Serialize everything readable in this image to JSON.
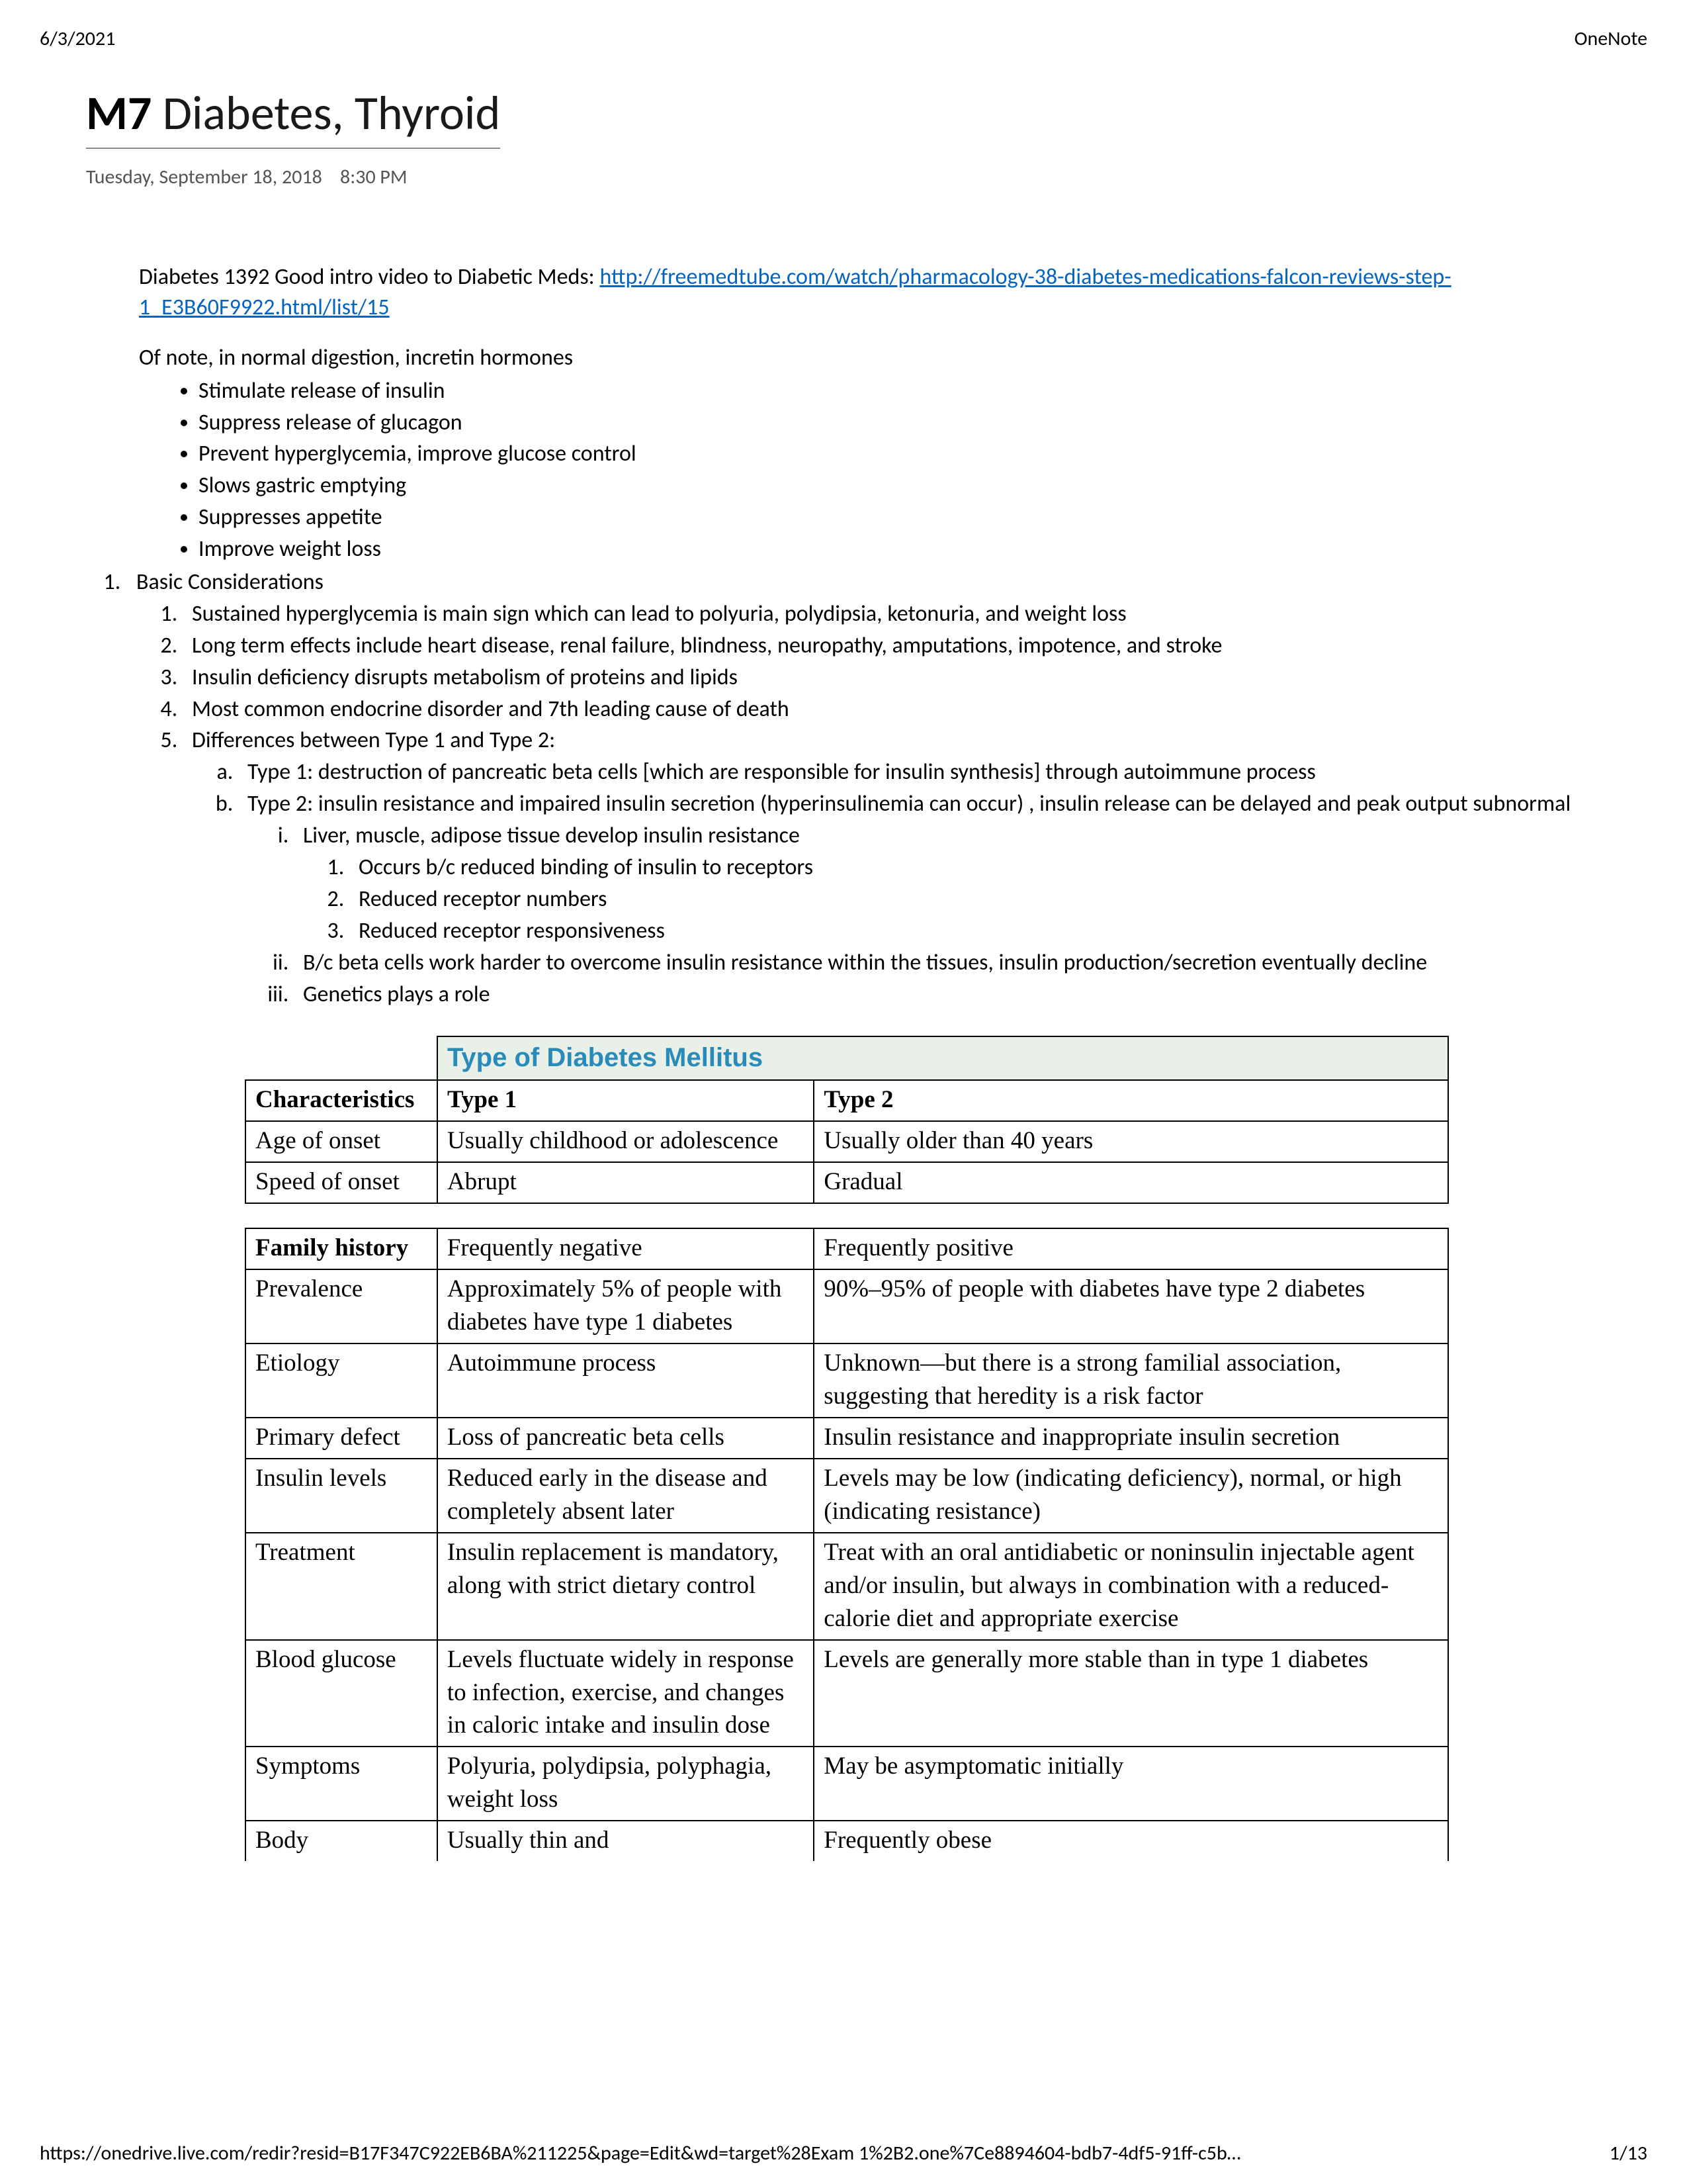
{
  "header": {
    "date": "6/3/2021",
    "app": "OneNote"
  },
  "title": {
    "prefix": "M7",
    "rest": " Diabetes, Thyroid"
  },
  "timestamp": {
    "date": "Tuesday, September 18, 2018",
    "time": "8:30 PM"
  },
  "intro": {
    "lead": "Diabetes 1392 Good intro video to Diabetic Meds: ",
    "link_text": "http://freemedtube.com/watch/pharmacology-38-diabetes-medications-falcon-reviews-step-1_E3B60F9922.html/list/15"
  },
  "incretin": {
    "lead": "Of note, in normal digestion, incretin hormones",
    "items": [
      "Stimulate release of insulin",
      "Suppress release of glucagon",
      "Prevent hyperglycemia, improve glucose control",
      "Slows gastric emptying",
      "Suppresses appetite",
      "Improve weight loss"
    ]
  },
  "outline": {
    "l1": "Basic Considerations",
    "l1_items": [
      "Sustained hyperglycemia is main sign which can lead to polyuria, polydipsia, ketonuria, and weight loss",
      "Long term effects include heart disease, renal failure, blindness, neuropathy, amputations, impotence, and stroke",
      "Insulin deficiency disrupts metabolism of proteins and lipids",
      "Most common endocrine disorder and 7th leading cause of death",
      "Differences between Type 1 and Type 2:"
    ],
    "diff": {
      "a": "Type 1: destruction of pancreatic beta cells [which are responsible for insulin synthesis] through autoimmune process",
      "b": "Type 2: insulin resistance and impaired insulin secretion (hyperinsulinemia can occur) , insulin release can be delayed and peak output subnormal",
      "b_i": "Liver, muscle, adipose tissue develop insulin resistance",
      "b_i_1": "Occurs b/c reduced binding of insulin to receptors",
      "b_i_2": "Reduced receptor numbers",
      "b_i_3": "Reduced receptor responsiveness",
      "b_ii": "B/c beta cells work harder to overcome insulin resistance within the tissues, insulin production/secretion eventually decline",
      "b_iii": "Genetics plays a role"
    }
  },
  "table": {
    "title": "Type of Diabetes Mellitus",
    "col0": "Characteristics",
    "col1": "Type 1",
    "col2": "Type 2",
    "rows1": [
      [
        "Age of onset",
        "Usually childhood or adolescence",
        "Usually older than 40 years"
      ],
      [
        "Speed of onset",
        "Abrupt",
        "Gradual"
      ]
    ],
    "rows2": [
      [
        "Family history",
        "Frequently negative",
        "Frequently positive"
      ],
      [
        "Prevalence",
        "Approximately 5% of people with diabetes have type 1 diabetes",
        "90%–95% of people with diabetes have type 2 diabetes"
      ],
      [
        "Etiology",
        "Autoimmune process",
        "Unknown—but there is a strong familial association, suggesting that heredity is a risk factor"
      ],
      [
        "Primary defect",
        "Loss of pancreatic beta cells",
        "Insulin resistance and inappropriate insulin secretion"
      ],
      [
        "Insulin levels",
        "Reduced early in the disease and completely absent later",
        "Levels may be low (indicating deficiency), normal, or high (indicating resistance)"
      ],
      [
        "Treatment",
        "Insulin replacement is mandatory, along with strict dietary control",
        "Treat with an oral antidiabetic or noninsulin injectable agent and/or insulin, but always in combination with a reduced-calorie diet and appropriate exercise"
      ],
      [
        "Blood glucose",
        "Levels fluctuate widely in response to infection, exercise, and changes in caloric intake and insulin dose",
        "Levels are generally more stable than in type 1 diabetes"
      ],
      [
        "Symptoms",
        "Polyuria, polydipsia, polyphagia, weight loss",
        "May be asymptomatic initially"
      ],
      [
        "Body",
        "Usually thin and",
        "Frequently obese"
      ]
    ]
  },
  "footer": {
    "url": "https://onedrive.live.com/redir?resid=B17F347C922EB6BA%211225&page=Edit&wd=target%28Exam 1%2B2.one%7Ce8894604-bdb7-4df5-91ff-c5b…",
    "page": "1/13"
  }
}
